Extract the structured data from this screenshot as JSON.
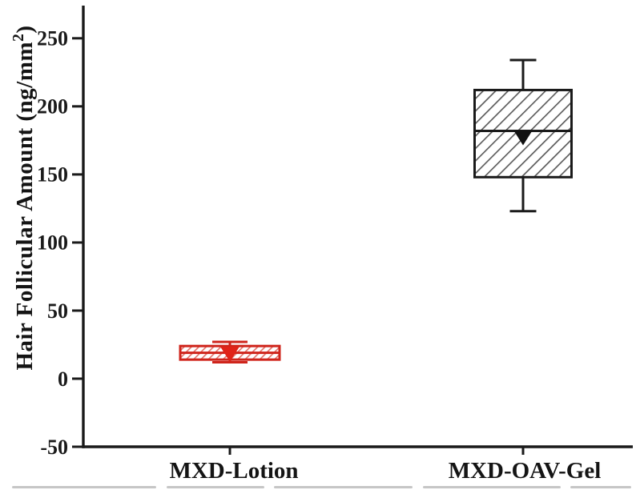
{
  "chart_data": {
    "type": "box",
    "title": "",
    "xlabel": "",
    "ylabel_main": "Hair Follicular Amount (ng/mm",
    "ylabel_sup": "2",
    "ylabel_close": ")",
    "ylim": [
      -50,
      274
    ],
    "yticks": [
      250,
      200,
      150,
      100,
      50,
      0,
      -50
    ],
    "grid": false,
    "legend": "none",
    "axis_color": "#1a1a1a",
    "categories": [
      "MXD-Lotion",
      "MXD-OAV-Gel"
    ],
    "series": [
      {
        "name": "MXD-Lotion",
        "whisker_low": 12,
        "q1": 14,
        "median": 19,
        "q3": 24,
        "whisker_high": 27,
        "mean": 18,
        "box_color": "#cf241b",
        "hatch_color": "#e4756d",
        "fill": "#ffffff",
        "mean_marker": "filled-triangle-down",
        "mean_marker_color": "#e02318",
        "hatch_direction": "forward-slash"
      },
      {
        "name": "MXD-OAV-Gel",
        "whisker_low": 123,
        "q1": 148,
        "median": 182,
        "q3": 212,
        "whisker_high": 234,
        "mean": 177,
        "box_color": "#1a1a1a",
        "hatch_color": "#5a5a5a",
        "fill": "#ffffff",
        "mean_marker": "filled-triangle-down",
        "mean_marker_color": "#111111",
        "hatch_direction": "forward-slash"
      }
    ]
  }
}
